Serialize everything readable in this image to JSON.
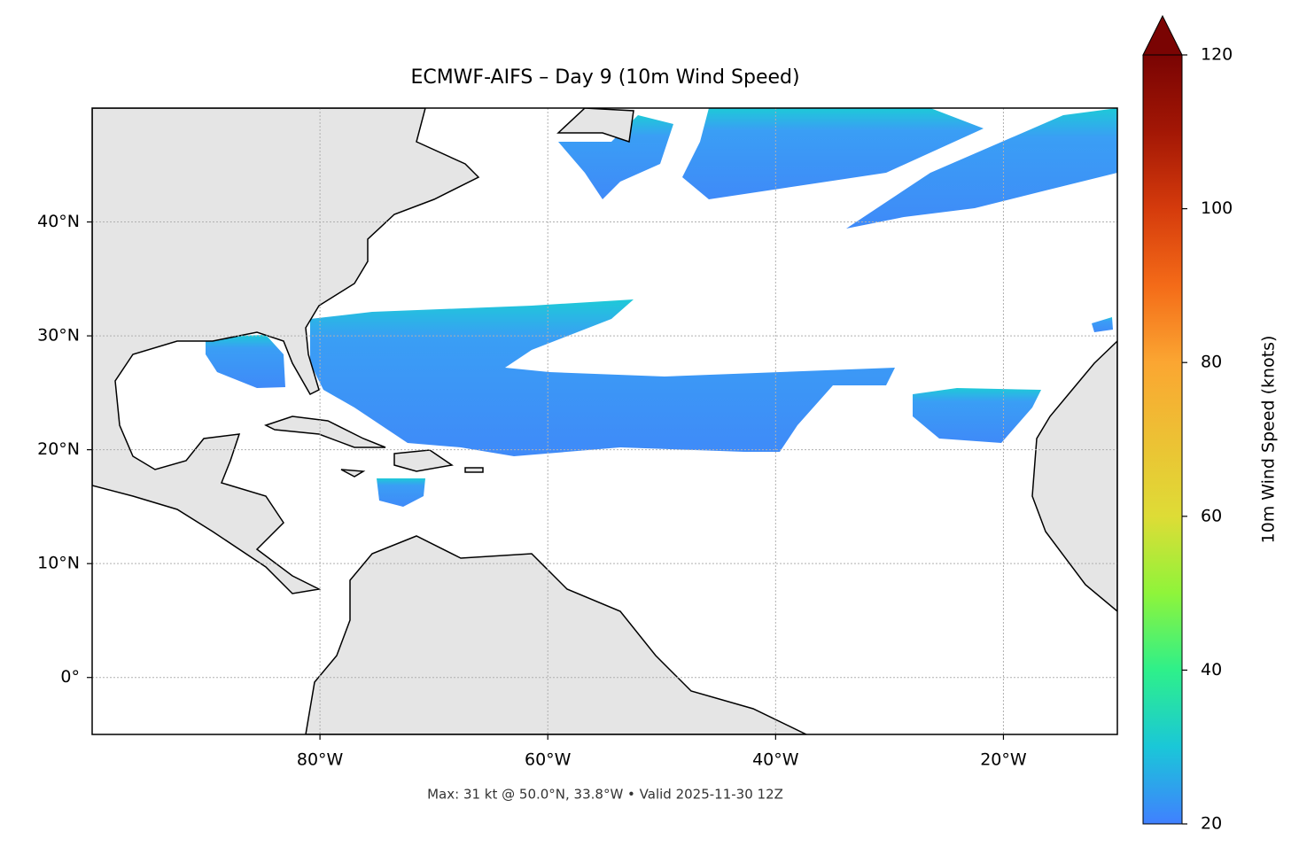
{
  "chart_data": {
    "type": "map",
    "title": "ECMWF-AIFS – Day 9 (10m Wind Speed)",
    "footer": "Max: 31 kt @ 50.0°N, 33.8°W • Valid 2025-11-30 12Z",
    "xlim": [
      -100,
      -10
    ],
    "ylim": [
      -5,
      50
    ],
    "xticks": [
      {
        "value": -80,
        "label": "80°W"
      },
      {
        "value": -60,
        "label": "60°W"
      },
      {
        "value": -40,
        "label": "40°W"
      },
      {
        "value": -20,
        "label": "20°W"
      }
    ],
    "yticks": [
      {
        "value": 0,
        "label": "0°"
      },
      {
        "value": 10,
        "label": "10°N"
      },
      {
        "value": 20,
        "label": "20°N"
      },
      {
        "value": 30,
        "label": "30°N"
      },
      {
        "value": 40,
        "label": "40°N"
      }
    ],
    "grid": true,
    "colorbar": {
      "label": "10m Wind Speed (knots)",
      "lim": [
        20,
        120
      ],
      "ticks": [
        20,
        40,
        60,
        80,
        100,
        120
      ]
    }
  }
}
